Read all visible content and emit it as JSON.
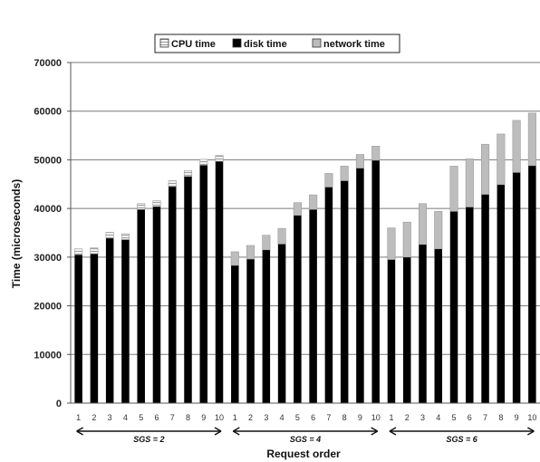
{
  "chart_data": {
    "type": "bar",
    "stacked": true,
    "ylabel": "Time (microseconds)",
    "xlabel": "Request order",
    "ylim": [
      0,
      70000
    ],
    "yticks": [
      0,
      10000,
      20000,
      30000,
      40000,
      50000,
      60000,
      70000
    ],
    "grid": true,
    "legend": "top",
    "categories": [
      "1",
      "2",
      "3",
      "4",
      "5",
      "6",
      "7",
      "8",
      "9",
      "10",
      "1",
      "2",
      "3",
      "4",
      "5",
      "6",
      "7",
      "8",
      "9",
      "10",
      "1",
      "2",
      "3",
      "4",
      "5",
      "6",
      "7",
      "8",
      "9",
      "10"
    ],
    "groups": [
      {
        "label": "SGS = 2",
        "start": 0,
        "count": 10
      },
      {
        "label": "SGS = 4",
        "start": 10,
        "count": 10
      },
      {
        "label": "SGS = 6",
        "start": 20,
        "count": 10
      }
    ],
    "series": [
      {
        "name": "CPU time",
        "color": "#e6e6e6",
        "pattern": "hatch",
        "values": [
          1200,
          1200,
          1200,
          1200,
          1200,
          1200,
          1200,
          1200,
          1200,
          1200,
          0,
          0,
          0,
          0,
          0,
          0,
          0,
          0,
          0,
          0,
          0,
          0,
          0,
          0,
          0,
          0,
          0,
          0,
          0,
          0
        ]
      },
      {
        "name": "disk time",
        "color": "#000000",
        "values": [
          30500,
          30700,
          33900,
          33600,
          39800,
          40400,
          44500,
          46600,
          48900,
          49700,
          28300,
          29600,
          31500,
          32700,
          38600,
          39800,
          44400,
          45700,
          48300,
          49900,
          29500,
          30000,
          32600,
          31700,
          39400,
          40300,
          42900,
          44900,
          47400,
          48800
        ]
      },
      {
        "name": "network time",
        "color": "#bdbdbd",
        "values": [
          0,
          0,
          0,
          0,
          0,
          0,
          0,
          0,
          0,
          0,
          2800,
          2800,
          3000,
          3200,
          2600,
          3000,
          2800,
          3000,
          2800,
          2900,
          6500,
          7200,
          8400,
          7700,
          9300,
          9900,
          10300,
          10400,
          10700,
          10800
        ]
      }
    ]
  }
}
